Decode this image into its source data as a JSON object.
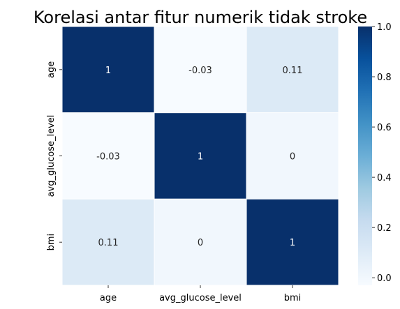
{
  "chart_data": {
    "type": "heatmap",
    "title": "Korelasi antar fitur numerik tidak stroke",
    "x_labels": [
      "age",
      "avg_glucose_level",
      "bmi"
    ],
    "y_labels": [
      "age",
      "avg_glucose_level",
      "bmi"
    ],
    "values": [
      [
        1,
        -0.03,
        0.11
      ],
      [
        -0.03,
        1,
        0
      ],
      [
        0.11,
        0,
        1
      ]
    ],
    "cell_labels": [
      [
        "1",
        "-0.03",
        "0.11"
      ],
      [
        "-0.03",
        "1",
        "0"
      ],
      [
        "0.11",
        "0",
        "1"
      ]
    ],
    "colormap": "Blues",
    "colormap_stops": [
      "#f7fbff",
      "#deebf7",
      "#c6dbef",
      "#9ecae1",
      "#6baed6",
      "#4292c6",
      "#2171b5",
      "#08519c",
      "#08306b"
    ],
    "vmin": -0.03,
    "vmax": 1,
    "colorbar_ticks": [
      0.0,
      0.2,
      0.4,
      0.6,
      0.8,
      1.0
    ],
    "colorbar_tick_labels": [
      "0.0",
      "0.2",
      "0.4",
      "0.6",
      "0.8",
      "1.0"
    ],
    "grid_line_color": "#ffffff",
    "annotation_dark_color": "#262626",
    "annotation_light_color": "#ffffff"
  }
}
